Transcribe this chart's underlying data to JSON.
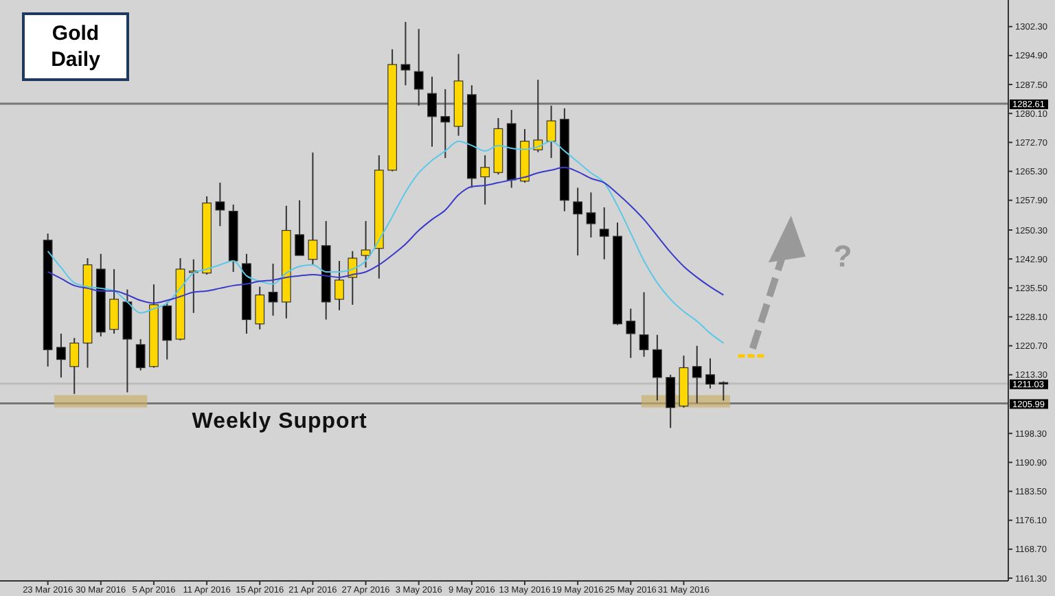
{
  "chart_data": {
    "type": "candlestick",
    "title": "Gold Daily",
    "categories": [
      "23 Mar 2016",
      null,
      null,
      null,
      "30 Mar 2016",
      null,
      null,
      null,
      "5 Apr 2016",
      null,
      null,
      null,
      "11 Apr 2016",
      null,
      null,
      null,
      "15 Apr 2016",
      null,
      null,
      null,
      "21 Apr 2016",
      null,
      null,
      null,
      "27 Apr 2016",
      null,
      null,
      null,
      "3 May 2016",
      null,
      null,
      null,
      "9 May 2016",
      null,
      null,
      null,
      "13 May 2016",
      null,
      null,
      null,
      "19 May 2016",
      null,
      null,
      null,
      "25 May 2016",
      null,
      null,
      null,
      "31 May 2016",
      null,
      null,
      null,
      null,
      null,
      null,
      null,
      null,
      null,
      null,
      null,
      null,
      null,
      null,
      null,
      null,
      null,
      null,
      null,
      null,
      null,
      null,
      null,
      null
    ],
    "ohlc": [
      [
        1247.7,
        1249.4,
        1215.4,
        1219.7
      ],
      [
        1220.3,
        1223.8,
        1212.6,
        1217.2
      ],
      [
        1215.4,
        1222.7,
        1208.4,
        1221.4
      ],
      [
        1221.4,
        1243.1,
        1215.1,
        1241.4
      ],
      [
        1240.3,
        1244.2,
        1223.1,
        1224.2
      ],
      [
        1224.9,
        1240.3,
        1223.8,
        1232.6
      ],
      [
        1231.9,
        1235.1,
        1208.8,
        1222.4
      ],
      [
        1221.0,
        1222.4,
        1214.4,
        1215.1
      ],
      [
        1215.4,
        1236.4,
        1215.1,
        1231.2
      ],
      [
        1230.9,
        1231.9,
        1217.2,
        1222.1
      ],
      [
        1222.4,
        1243.1,
        1222.1,
        1240.3
      ],
      [
        1239.6,
        1242.8,
        1229.1,
        1239.8
      ],
      [
        1239.3,
        1258.9,
        1238.9,
        1257.2
      ],
      [
        1257.5,
        1262.4,
        1251.3,
        1255.4
      ],
      [
        1255.1,
        1256.8,
        1239.6,
        1242.4
      ],
      [
        1241.7,
        1244.2,
        1223.8,
        1227.4
      ],
      [
        1226.3,
        1235.8,
        1224.9,
        1233.7
      ],
      [
        1234.4,
        1241.7,
        1228.4,
        1231.9
      ],
      [
        1231.9,
        1256.5,
        1227.7,
        1250.2
      ],
      [
        1249.1,
        1257.9,
        1243.8,
        1243.8
      ],
      [
        1242.8,
        1270.1,
        1241.4,
        1247.7
      ],
      [
        1246.3,
        1252.6,
        1227.4,
        1231.9
      ],
      [
        1232.6,
        1242.4,
        1229.8,
        1237.5
      ],
      [
        1238.2,
        1244.9,
        1231.2,
        1243.1
      ],
      [
        1243.8,
        1252.6,
        1240.7,
        1245.2
      ],
      [
        1245.6,
        1269.4,
        1237.9,
        1265.6
      ],
      [
        1265.6,
        1296.5,
        1265.3,
        1292.6
      ],
      [
        1292.6,
        1303.5,
        1287.3,
        1291.2
      ],
      [
        1290.8,
        1301.7,
        1282.1,
        1286.3
      ],
      [
        1285.2,
        1289.5,
        1271.6,
        1279.3
      ],
      [
        1279.3,
        1286.3,
        1268.7,
        1277.9
      ],
      [
        1276.8,
        1295.3,
        1274.4,
        1288.4
      ],
      [
        1284.9,
        1287.3,
        1261.1,
        1263.5
      ],
      [
        1263.9,
        1269.4,
        1256.8,
        1266.3
      ],
      [
        1265.0,
        1278.9,
        1264.5,
        1276.2
      ],
      [
        1277.5,
        1281.0,
        1261.1,
        1263.1
      ],
      [
        1262.8,
        1276.1,
        1262.4,
        1273.0
      ],
      [
        1270.8,
        1288.7,
        1270.2,
        1273.3
      ],
      [
        1273.0,
        1282.1,
        1268.7,
        1278.2
      ],
      [
        1278.6,
        1281.4,
        1255.1,
        1257.9
      ],
      [
        1257.5,
        1261.1,
        1243.8,
        1254.4
      ],
      [
        1254.7,
        1259.9,
        1248.4,
        1251.9
      ],
      [
        1250.5,
        1256.1,
        1242.8,
        1248.7
      ],
      [
        1248.7,
        1252.2,
        1226.0,
        1226.3
      ],
      [
        1227.0,
        1230.2,
        1217.6,
        1223.8
      ],
      [
        1223.5,
        1234.4,
        1217.9,
        1219.7
      ],
      [
        1219.7,
        1223.5,
        1206.7,
        1212.6
      ],
      [
        1212.6,
        1213.3,
        1199.7,
        1204.9
      ],
      [
        1205.3,
        1218.2,
        1204.9,
        1215.1
      ],
      [
        1215.4,
        1220.7,
        1206.0,
        1212.6
      ],
      [
        1213.3,
        1217.5,
        1209.8,
        1210.9
      ],
      [
        1211.3,
        1211.6,
        1206.7,
        1211.0
      ],
      null,
      null,
      null,
      null,
      null,
      null,
      null,
      null,
      null,
      null,
      null,
      null,
      null,
      null,
      null,
      null,
      null,
      null,
      null,
      null,
      null
    ],
    "colors": [
      "#000000",
      "#000000",
      "#ffd700",
      "#ffd700",
      "#000000",
      "#ffd700",
      "#000000",
      "#000000",
      "#ffd700",
      "#000000",
      "#ffd700",
      "#ffd700",
      "#ffd700",
      "#000000",
      "#000000",
      "#000000",
      "#ffd700",
      "#000000",
      "#ffd700",
      "#000000",
      "#ffd700",
      "#000000",
      "#ffd700",
      "#ffd700",
      "#ffd700",
      "#ffd700",
      "#ffd700",
      "#000000",
      "#000000",
      "#000000",
      "#000000",
      "#ffd700",
      "#000000",
      "#ffd700",
      "#ffd700",
      "#000000",
      "#ffd700",
      "#ffd700",
      "#ffd700",
      "#000000",
      "#000000",
      "#000000",
      "#000000",
      "#000000",
      "#000000",
      "#000000",
      "#000000",
      "#000000",
      "#ffd700",
      "#000000",
      "#000000",
      "#000000",
      null,
      null,
      null,
      null,
      null,
      null,
      null,
      null,
      null,
      null,
      null,
      null,
      null,
      null,
      null,
      null,
      null,
      null,
      null,
      null,
      null
    ],
    "series": [
      {
        "type": "line",
        "color": "#5bc8e8",
        "values": [
          1244.9,
          1240.7,
          1236.8,
          1235.8,
          1235.4,
          1234.7,
          1231.9,
          1229.1,
          1230.2,
          1231.6,
          1235.4,
          1239.3,
          1240.3,
          1241.4,
          1242.4,
          1238.6,
          1237.2,
          1236.5,
          1239.3,
          1241.0,
          1241.4,
          1239.6,
          1239.6,
          1240.3,
          1242.4,
          1247.7,
          1253.7,
          1260.0,
          1264.9,
          1268.1,
          1270.5,
          1273.0,
          1271.9,
          1270.5,
          1271.9,
          1271.2,
          1270.9,
          1271.6,
          1273.0,
          1270.5,
          1267.7,
          1264.9,
          1262.4,
          1256.5,
          1249.5,
          1242.4,
          1236.8,
          1232.6,
          1229.5,
          1227.0,
          1223.9,
          1221.4,
          null,
          null,
          null,
          null,
          null,
          null,
          null,
          null,
          null,
          null,
          null,
          null,
          null,
          null,
          null,
          null,
          null,
          null,
          null,
          null,
          null
        ]
      },
      {
        "type": "line",
        "color": "#3a3ac8",
        "values": [
          1239.6,
          1237.9,
          1236.1,
          1235.4,
          1234.7,
          1234.7,
          1233.7,
          1232.3,
          1231.6,
          1232.3,
          1233.3,
          1234.4,
          1234.7,
          1235.4,
          1236.1,
          1236.5,
          1237.2,
          1237.5,
          1238.2,
          1238.6,
          1238.9,
          1238.6,
          1238.2,
          1238.9,
          1239.6,
          1241.4,
          1243.9,
          1246.7,
          1250.2,
          1253.0,
          1255.4,
          1259.3,
          1261.4,
          1261.7,
          1262.4,
          1263.1,
          1263.8,
          1264.9,
          1265.6,
          1266.3,
          1265.2,
          1263.5,
          1262.4,
          1259.6,
          1256.5,
          1253.0,
          1248.8,
          1244.6,
          1241.0,
          1238.2,
          1235.8,
          1233.7,
          null,
          null,
          null,
          null,
          null,
          null,
          null,
          null,
          null,
          null,
          null,
          null,
          null,
          null,
          null,
          null,
          null,
          null,
          null,
          null,
          null
        ]
      }
    ],
    "ylim": [
      1160.6,
      1309.1
    ],
    "yticks": [
      {
        "value": 1161.3,
        "label": "1161.30"
      },
      {
        "value": 1168.7,
        "label": "1168.70"
      },
      {
        "value": 1176.1,
        "label": "1176.10"
      },
      {
        "value": 1183.5,
        "label": "1183.50"
      },
      {
        "value": 1190.9,
        "label": "1190.90"
      },
      {
        "value": 1198.3,
        "label": "1198.30"
      },
      {
        "value": 1213.3,
        "label": "1213.30"
      },
      {
        "value": 1220.7,
        "label": "1220.70"
      },
      {
        "value": 1228.1,
        "label": "1228.10"
      },
      {
        "value": 1235.5,
        "label": "1235.50"
      },
      {
        "value": 1242.9,
        "label": "1242.90"
      },
      {
        "value": 1250.3,
        "label": "1250.30"
      },
      {
        "value": 1257.9,
        "label": "1257.90"
      },
      {
        "value": 1265.3,
        "label": "1265.30"
      },
      {
        "value": 1272.7,
        "label": "1272.70"
      },
      {
        "value": 1280.1,
        "label": "1280.10"
      },
      {
        "value": 1287.5,
        "label": "1287.50"
      },
      {
        "value": 1294.9,
        "label": "1294.90"
      },
      {
        "value": 1302.3,
        "label": "1302.30"
      }
    ],
    "ref_lines": [
      {
        "axis": "y",
        "value": 1282.61,
        "label": "1282.61",
        "color": "#777777"
      },
      {
        "axis": "y",
        "value": 1205.99,
        "label": "1205.99",
        "color": "#777777"
      },
      {
        "axis": "y",
        "value": 1211.03,
        "label": "1211.03",
        "color": "#bdbdbd"
      }
    ],
    "annotations": [
      "Weekly Support",
      "?"
    ]
  }
}
